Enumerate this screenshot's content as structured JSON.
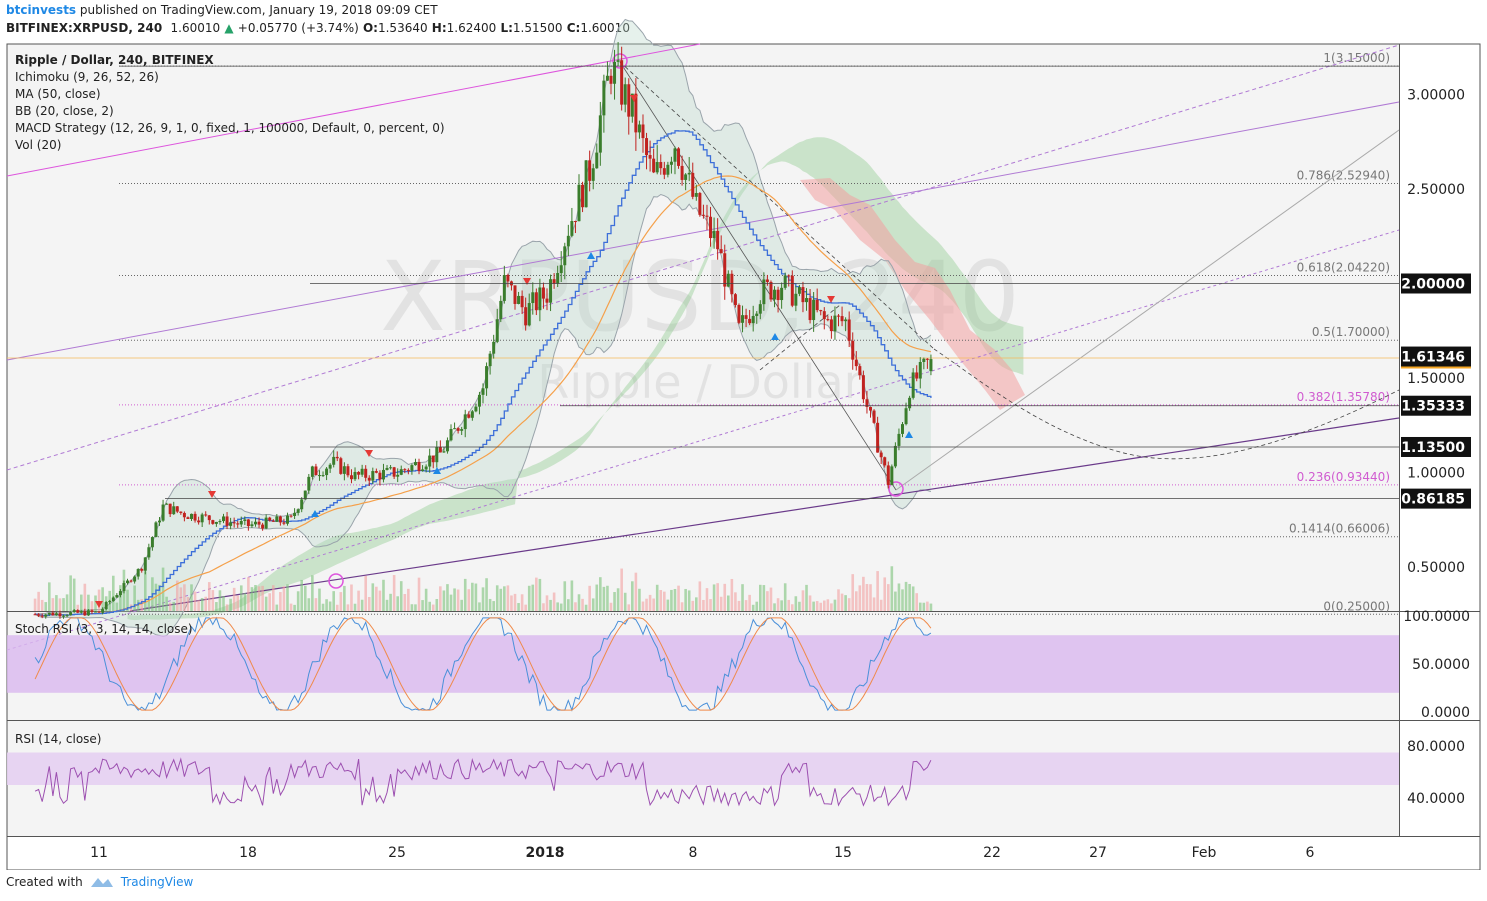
{
  "header": {
    "author": "btcinvests",
    "published_text": "published on TradingView.com, January 19, 2018 09:09 CET",
    "symbol": "BITFINEX:XRPUSD, 240",
    "last": "1.60010",
    "change_arrow": "▲",
    "change": "+0.05770 (+3.74%)",
    "o_label": "O:",
    "o_value": "1.53640",
    "h_label": "H:",
    "h_value": "1.62400",
    "l_label": "L:",
    "l_value": "1.51500",
    "c_label": "C:",
    "c_value": "1.60010"
  },
  "legend": {
    "title": "Ripple / Dollar, 240, BITFINEX",
    "items": [
      "Ichimoku (9, 26, 52, 26)",
      "MA (50, close)",
      "BB (20, close, 2)",
      "MACD Strategy (12, 26, 9, 1, 0, fixed, 1, 100000, Default, 0, percent, 0)",
      "Vol (20)"
    ]
  },
  "watermark": {
    "symbol": "XRPUSD, 240",
    "name": "Ripple / Dollar"
  },
  "footer": {
    "created_with": "Created with",
    "brand": "TradingView"
  },
  "colors": {
    "candle_up": "#3a7d2c",
    "candle_down": "#c0221f",
    "ma": "#f5a04a",
    "baseline": "#3d6fd9",
    "fib": "#b07ad4",
    "rsi": "#9c4fb0",
    "stoch_k": "#4a90d9",
    "stoch_d": "#f08a4a"
  },
  "chart_data": [
    {
      "type": "candlestick",
      "title": "Ripple / Dollar, 240, BITFINEX",
      "ylim": [
        0.25,
        3.2
      ],
      "price_axis_ticks": [
        "3.00000",
        "2.50000",
        "2.00000",
        "1.50000",
        "1.00000",
        "0.50000"
      ],
      "x_tick_labels": [
        "11",
        "18",
        "25",
        "2018",
        "8",
        "15",
        "22",
        "27",
        "Feb",
        "6"
      ],
      "highlighted_prices": [
        "2.00000",
        "1.61346",
        "1.35333",
        "1.13500",
        "0.86185"
      ],
      "fib_levels": [
        {
          "label": "1(3.15000)",
          "price": 3.15
        },
        {
          "label": "0.786(2.52940)",
          "price": 2.5294
        },
        {
          "label": "0.618(2.04220)",
          "price": 2.0422
        },
        {
          "label": "0.5(1.70000)",
          "price": 1.7
        },
        {
          "label": "0.382(1.35780)",
          "price": 1.3578
        },
        {
          "label": "0.236(0.93440)",
          "price": 0.9344
        },
        {
          "label": "0.1414(0.66006)",
          "price": 0.66006
        },
        {
          "label": "0(0.25000)",
          "price": 0.25
        }
      ],
      "price_path_approx": [
        {
          "x": "Dec 8",
          "close": 0.25
        },
        {
          "x": "Dec 11",
          "close": 0.26
        },
        {
          "x": "Dec 13",
          "close": 0.5
        },
        {
          "x": "Dec 14",
          "close": 0.82
        },
        {
          "x": "Dec 15",
          "close": 0.78
        },
        {
          "x": "Dec 18",
          "close": 0.72
        },
        {
          "x": "Dec 20",
          "close": 0.75
        },
        {
          "x": "Dec 21",
          "close": 1.0
        },
        {
          "x": "Dec 22",
          "close": 1.05
        },
        {
          "x": "Dec 23",
          "close": 0.98
        },
        {
          "x": "Dec 25",
          "close": 1.0
        },
        {
          "x": "Dec 27",
          "close": 1.1
        },
        {
          "x": "Dec 29",
          "close": 1.45
        },
        {
          "x": "Dec 30",
          "close": 2.0
        },
        {
          "x": "Dec 31",
          "close": 1.85
        },
        {
          "x": "Jan 1",
          "close": 1.95
        },
        {
          "x": "Jan 2",
          "close": 2.3
        },
        {
          "x": "Jan 3",
          "close": 2.6
        },
        {
          "x": "Jan 4",
          "close": 3.15
        },
        {
          "x": "Jan 5",
          "close": 2.9
        },
        {
          "x": "Jan 6",
          "close": 2.55
        },
        {
          "x": "Jan 7",
          "close": 2.75
        },
        {
          "x": "Jan 8",
          "close": 2.4
        },
        {
          "x": "Jan 9",
          "close": 2.2
        },
        {
          "x": "Jan 10",
          "close": 1.75
        },
        {
          "x": "Jan 11",
          "close": 1.95
        },
        {
          "x": "Jan 12",
          "close": 2.0
        },
        {
          "x": "Jan 13",
          "close": 1.9
        },
        {
          "x": "Jan 14",
          "close": 1.8
        },
        {
          "x": "Jan 15",
          "close": 1.8
        },
        {
          "x": "Jan 16",
          "close": 1.35
        },
        {
          "x": "Jan 17",
          "close": 0.95
        },
        {
          "x": "Jan 18",
          "close": 1.45
        },
        {
          "x": "Jan 19",
          "close": 1.6001
        }
      ]
    },
    {
      "type": "line",
      "title": "Stoch RSI (3, 3, 14, 14, close)",
      "ylim": [
        0,
        100
      ],
      "y_tick_labels": [
        "100.0000",
        "50.0000",
        "0.0000"
      ],
      "band": [
        20,
        80
      ]
    },
    {
      "type": "line",
      "title": "RSI (14, close)",
      "ylim": [
        20,
        95
      ],
      "y_tick_labels": [
        "80.0000",
        "40.0000"
      ],
      "band": [
        50,
        75
      ]
    }
  ]
}
